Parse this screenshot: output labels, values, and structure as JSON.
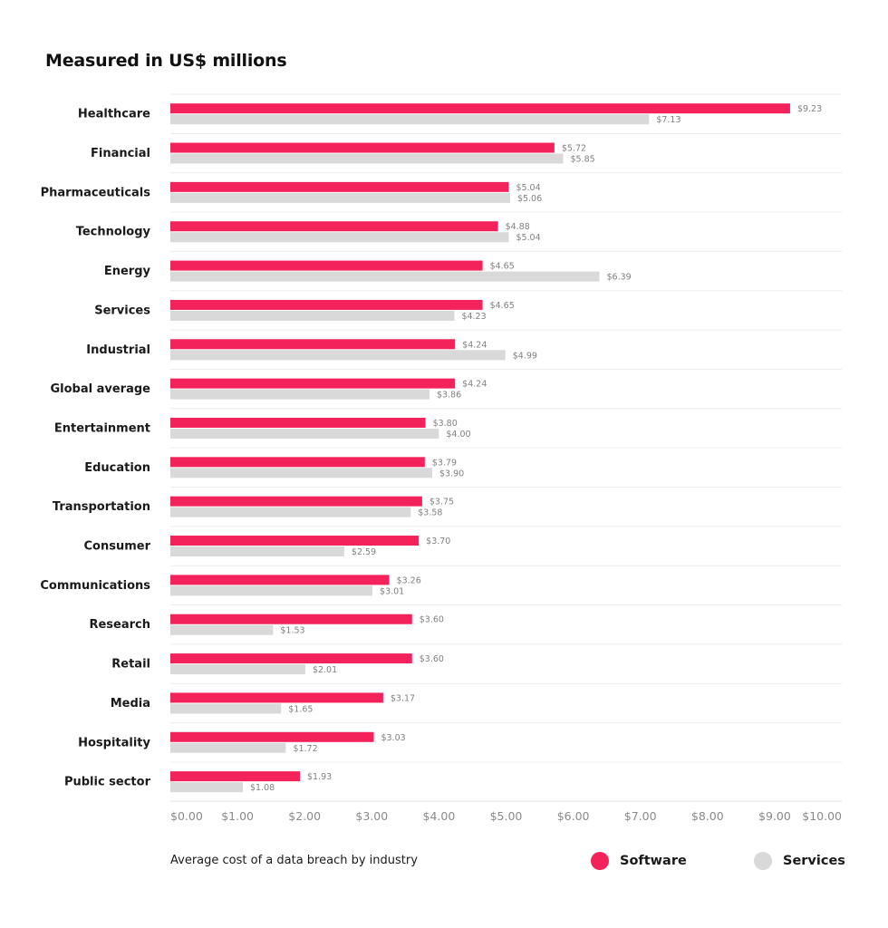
{
  "chart_data": {
    "type": "bar",
    "orientation": "horizontal",
    "title": "Measured in US$ millions",
    "caption": "Average cost of a data breach by industry",
    "xlim": [
      0,
      10
    ],
    "x_ticks": [
      "$0.00",
      "$1.00",
      "$2.00",
      "$3.00",
      "$4.00",
      "$5.00",
      "$6.00",
      "$7.00",
      "$8.00",
      "$9.00",
      "$10.00"
    ],
    "x_tick_values": [
      0,
      1,
      2,
      3,
      4,
      5,
      6,
      7,
      8,
      9,
      10
    ],
    "grid": "horizontal separators",
    "legend_position": "bottom-right",
    "categories": [
      "Healthcare",
      "Financial",
      "Pharmaceuticals",
      "Technology",
      "Energy",
      "Services",
      "Industrial",
      "Global average",
      "Entertainment",
      "Education",
      "Transportation",
      "Consumer",
      "Communications",
      "Research",
      "Retail",
      "Media",
      "Hospitality",
      "Public sector"
    ],
    "series": [
      {
        "name": "Software",
        "color": "#f4225a",
        "values": [
          9.23,
          5.72,
          5.04,
          4.88,
          4.65,
          4.65,
          4.24,
          4.24,
          3.8,
          3.79,
          3.75,
          3.7,
          3.26,
          3.6,
          3.6,
          3.17,
          3.03,
          1.93
        ],
        "labels": [
          "$9.23",
          "$5.72",
          "$5.04",
          "$4.88",
          "$4.65",
          "$4.65",
          "$4.24",
          "$4.24",
          "$3.80",
          "$3.79",
          "$3.75",
          "$3.70",
          "$3.26",
          "$3.60",
          "$3.60",
          "$3.17",
          "$3.03",
          "$1.93"
        ]
      },
      {
        "name": "Services",
        "color": "#d9d9d9",
        "values": [
          7.13,
          5.85,
          5.06,
          5.04,
          6.39,
          4.23,
          4.99,
          3.86,
          4.0,
          3.9,
          3.58,
          2.59,
          3.01,
          1.53,
          2.01,
          1.65,
          1.72,
          1.08
        ],
        "labels": [
          "$7.13",
          "$5.85",
          "$5.06",
          "$5.04",
          "$6.39",
          "$4.23",
          "$4.99",
          "$3.86",
          "$4.00",
          "$3.90",
          "$3.58",
          "$2.59",
          "$3.01",
          "$1.53",
          "$2.01",
          "$1.65",
          "$1.72",
          "$1.08"
        ]
      }
    ]
  },
  "colors": {
    "separator": "#ececec",
    "tick_text": "#8a8a8a",
    "value_text": "#808080"
  }
}
